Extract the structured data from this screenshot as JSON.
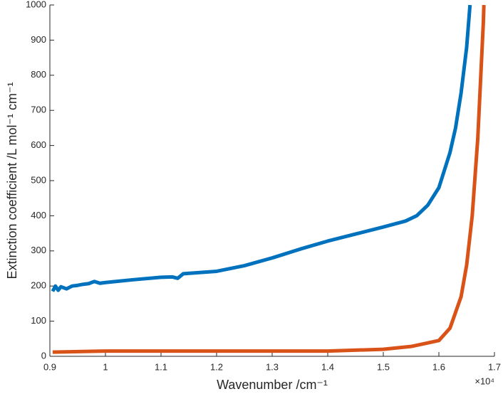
{
  "chart_data": {
    "type": "line",
    "xlabel": "Wavenumber /cm⁻¹",
    "ylabel": "Extinction coefficient /L mol⁻¹ cm⁻¹",
    "x_multiplier": "×10⁴",
    "xlim": [
      0.9,
      1.7
    ],
    "xticks": [
      0.9,
      1,
      1.1,
      1.2,
      1.3,
      1.4,
      1.5,
      1.6,
      1.7
    ],
    "ylim": [
      0,
      1000
    ],
    "yticks": [
      0,
      100,
      200,
      300,
      400,
      500,
      600,
      700,
      800,
      900,
      1000
    ],
    "grid": false,
    "series": [
      {
        "color": "#0072bd",
        "x": [
          0.905,
          0.91,
          0.915,
          0.92,
          0.93,
          0.94,
          0.95,
          0.96,
          0.97,
          0.98,
          0.99,
          1.0,
          1.05,
          1.1,
          1.12,
          1.13,
          1.14,
          1.2,
          1.25,
          1.3,
          1.35,
          1.4,
          1.45,
          1.5,
          1.54,
          1.56,
          1.58,
          1.6,
          1.62,
          1.63,
          1.64,
          1.65,
          1.656
        ],
        "values": [
          185,
          200,
          188,
          198,
          192,
          200,
          202,
          205,
          207,
          213,
          208,
          210,
          218,
          225,
          226,
          222,
          235,
          242,
          258,
          280,
          305,
          328,
          348,
          368,
          385,
          400,
          430,
          480,
          580,
          650,
          750,
          880,
          1000
        ]
      },
      {
        "color": "#d95319",
        "x": [
          0.905,
          1.0,
          1.2,
          1.4,
          1.5,
          1.55,
          1.58,
          1.6,
          1.62,
          1.64,
          1.65,
          1.66,
          1.67,
          1.68,
          1.681
        ],
        "values": [
          12,
          15,
          15,
          15,
          20,
          28,
          38,
          45,
          80,
          170,
          260,
          400,
          620,
          950,
          1000
        ]
      }
    ]
  }
}
